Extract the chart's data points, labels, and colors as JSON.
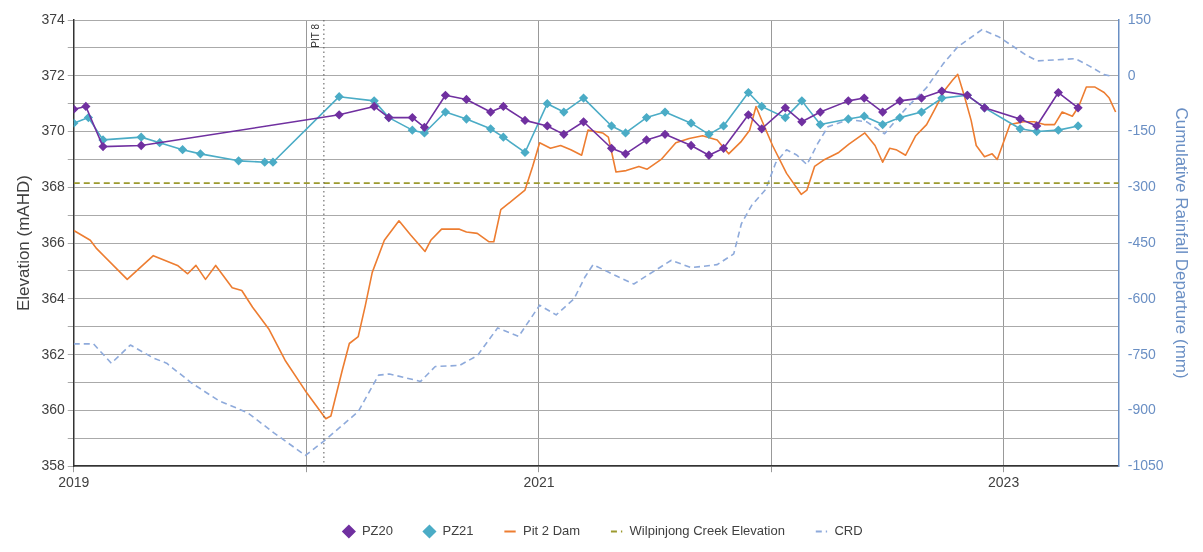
{
  "chart_data": {
    "type": "line",
    "ylabel": "Elevation (mAHD)",
    "y2label": "Cumulative Rainfall Departure (mm)",
    "xlim": [
      "2019-01-01",
      "2023-07-01"
    ],
    "xticks": [
      {
        "value": "2019-01-01",
        "label": "2019"
      },
      {
        "value": "2020-01-01",
        "label": null
      },
      {
        "value": "2021-01-01",
        "label": "2021"
      },
      {
        "value": "2022-01-01",
        "label": null
      },
      {
        "value": "2023-01-01",
        "label": "2023"
      }
    ],
    "ylim": [
      358,
      374
    ],
    "yticks": [
      358,
      {
        "value": 359,
        "label": null
      },
      360,
      {
        "value": 361,
        "label": null
      },
      362,
      {
        "value": 363,
        "label": null
      },
      364,
      {
        "value": 365,
        "label": null
      },
      366,
      {
        "value": 367,
        "label": null
      },
      368,
      {
        "value": 369,
        "label": null
      },
      370,
      {
        "value": 371,
        "label": null
      },
      372,
      {
        "value": 373,
        "label": null
      },
      374
    ],
    "y2lim": [
      -1050,
      150
    ],
    "y2ticks": [
      -1050,
      -900,
      -750,
      -600,
      -450,
      -300,
      -150,
      0,
      150
    ],
    "grid": true,
    "legend": "bottom",
    "ref_lines": [
      {
        "axis": "x",
        "value": "2020-01-29",
        "label": "PIT 8",
        "line_style": "dotted",
        "color": "#555555"
      }
    ],
    "series": [
      {
        "name": "PZ20",
        "color": "#7030a0",
        "marker": "diamond",
        "line_style": "solid",
        "x": [
          "2019-01-01",
          "2019-01-20",
          "2019-02-16",
          "2019-04-17",
          "2020-02-22",
          "2020-04-17",
          "2020-05-10",
          "2020-06-16",
          "2020-07-05",
          "2020-08-07",
          "2020-09-09",
          "2020-10-17",
          "2020-11-06",
          "2020-12-10",
          "2021-01-14",
          "2021-02-09",
          "2021-03-12",
          "2021-04-25",
          "2021-05-17",
          "2021-06-19",
          "2021-07-18",
          "2021-08-28",
          "2021-09-25",
          "2021-10-18",
          "2021-11-26",
          "2021-12-17",
          "2022-01-23",
          "2022-02-18",
          "2022-03-19",
          "2022-05-02",
          "2022-05-27",
          "2022-06-25",
          "2022-07-22",
          "2022-08-25",
          "2022-09-26",
          "2022-11-05",
          "2022-12-02",
          "2023-01-27",
          "2023-02-22",
          "2023-03-28",
          "2023-04-28"
        ],
        "values": [
          370.8,
          370.9,
          369.46,
          369.5,
          370.6,
          370.9,
          370.5,
          370.5,
          370.15,
          371.3,
          371.15,
          370.7,
          370.9,
          370.4,
          370.2,
          369.9,
          370.35,
          369.4,
          369.2,
          369.7,
          369.9,
          369.5,
          369.15,
          369.4,
          370.6,
          370.1,
          370.85,
          370.35,
          370.7,
          371.1,
          371.2,
          370.7,
          371.1,
          371.2,
          371.45,
          371.3,
          370.85,
          370.45,
          370.2,
          371.4,
          370.85
        ]
      },
      {
        "name": "PZ21",
        "color": "#4bacc6",
        "marker": "diamond",
        "line_style": "solid",
        "x": [
          "2019-01-01",
          "2019-01-24",
          "2019-02-16",
          "2019-04-17",
          "2019-05-16",
          "2019-06-21",
          "2019-07-19",
          "2019-09-17",
          "2019-10-28",
          "2019-11-10",
          "2020-02-22",
          "2020-04-17",
          "2020-05-10",
          "2020-06-16",
          "2020-07-05",
          "2020-08-07",
          "2020-09-09",
          "2020-10-17",
          "2020-11-06",
          "2020-12-10",
          "2021-01-14",
          "2021-02-09",
          "2021-03-12",
          "2021-04-25",
          "2021-05-17",
          "2021-06-19",
          "2021-07-18",
          "2021-08-28",
          "2021-09-25",
          "2021-10-18",
          "2021-11-26",
          "2021-12-17",
          "2022-01-23",
          "2022-02-18",
          "2022-03-19",
          "2022-05-02",
          "2022-05-27",
          "2022-06-25",
          "2022-07-22",
          "2022-08-25",
          "2022-09-26",
          "2022-11-05",
          "2022-12-02",
          "2023-01-27",
          "2023-02-22",
          "2023-03-28",
          "2023-04-28"
        ],
        "values": [
          370.3,
          370.5,
          369.7,
          369.8,
          369.6,
          369.35,
          369.2,
          368.95,
          368.9,
          368.9,
          371.25,
          371.1,
          370.5,
          370.05,
          369.95,
          370.7,
          370.45,
          370.1,
          369.8,
          369.25,
          371.0,
          370.7,
          371.2,
          370.2,
          369.95,
          370.5,
          370.7,
          370.3,
          369.9,
          370.2,
          371.4,
          370.9,
          370.5,
          371.1,
          370.25,
          370.45,
          370.55,
          370.25,
          370.5,
          370.7,
          371.2,
          371.3,
          370.85,
          370.1,
          370.0,
          370.05,
          370.2
        ]
      },
      {
        "name": "Pit 2 Dam",
        "color": "#ed7d31",
        "marker": "none",
        "line_style": "solid",
        "x": [
          "2019-01-01",
          "2019-01-27",
          "2019-02-06",
          "2019-03-26",
          "2019-05-06",
          "2019-06-13",
          "2019-06-29",
          "2019-07-12",
          "2019-07-27",
          "2019-08-12",
          "2019-09-07",
          "2019-09-22",
          "2019-10-09",
          "2019-11-04",
          "2019-11-29",
          "2019-12-31",
          "2020-02-01",
          "2020-02-09",
          "2020-02-27",
          "2020-03-09",
          "2020-03-23",
          "2020-04-03",
          "2020-04-14",
          "2020-05-03",
          "2020-05-26",
          "2020-06-13",
          "2020-07-06",
          "2020-07-15",
          "2020-08-01",
          "2020-08-29",
          "2020-09-09",
          "2020-09-26",
          "2020-10-14",
          "2020-10-22",
          "2020-11-02",
          "2020-11-24",
          "2020-12-10",
          "2020-12-22",
          "2021-01-02",
          "2021-01-19",
          "2021-02-04",
          "2021-02-20",
          "2021-03-09",
          "2021-03-19",
          "2021-04-11",
          "2021-04-20",
          "2021-05-02",
          "2021-05-18",
          "2021-06-07",
          "2021-06-20",
          "2021-07-12",
          "2021-08-04",
          "2021-08-25",
          "2021-09-15",
          "2021-10-08",
          "2021-10-26",
          "2021-11-15",
          "2021-11-28",
          "2021-12-08",
          "2021-12-18",
          "2022-01-03",
          "2022-01-25",
          "2022-02-17",
          "2022-02-26",
          "2022-03-10",
          "2022-03-26",
          "2022-04-17",
          "2022-05-03",
          "2022-05-28",
          "2022-06-13",
          "2022-06-25",
          "2022-07-06",
          "2022-07-16",
          "2022-07-31",
          "2022-08-16",
          "2022-09-02",
          "2022-09-15",
          "2022-10-01",
          "2022-10-13",
          "2022-10-21",
          "2022-10-31",
          "2022-11-11",
          "2022-11-19",
          "2022-12-02",
          "2022-12-14",
          "2022-12-22",
          "2022-12-30",
          "2023-01-11",
          "2023-02-01",
          "2023-02-18",
          "2023-03-06",
          "2023-03-22",
          "2023-04-03",
          "2023-04-19",
          "2023-04-29",
          "2023-05-11",
          "2023-05-24",
          "2023-06-08",
          "2023-06-16",
          "2023-06-26"
        ],
        "values": [
          366.45,
          366.1,
          365.8,
          364.7,
          365.55,
          365.2,
          364.9,
          365.2,
          364.7,
          365.2,
          364.4,
          364.3,
          363.7,
          362.9,
          361.8,
          360.7,
          359.7,
          359.8,
          361.45,
          362.4,
          362.65,
          363.75,
          364.95,
          366.1,
          366.8,
          366.3,
          365.7,
          366.1,
          366.5,
          366.5,
          366.4,
          366.35,
          366.05,
          366.05,
          367.2,
          367.6,
          367.9,
          368.75,
          369.6,
          369.4,
          369.5,
          369.35,
          369.15,
          370.05,
          369.95,
          369.8,
          368.55,
          368.6,
          368.75,
          368.65,
          369.0,
          369.6,
          369.75,
          369.85,
          369.7,
          369.2,
          369.65,
          370.05,
          370.9,
          370.35,
          369.5,
          368.5,
          367.75,
          367.9,
          368.75,
          369.0,
          369.25,
          369.55,
          369.95,
          369.5,
          368.9,
          369.4,
          369.35,
          369.15,
          369.85,
          370.25,
          370.8,
          371.5,
          371.85,
          372.05,
          371.3,
          370.4,
          369.5,
          369.1,
          369.2,
          369.0,
          369.5,
          370.25,
          370.35,
          370.35,
          370.25,
          370.25,
          370.7,
          370.55,
          370.9,
          371.6,
          371.6,
          371.4,
          371.2,
          370.7
        ]
      },
      {
        "name": "Wilpinjong Creek Elevation",
        "color": "#9c9a2e",
        "marker": "none",
        "line_style": "dashed",
        "x": [
          "2019-01-01",
          "2023-07-01"
        ],
        "values": [
          368.15,
          368.15
        ]
      },
      {
        "name": "CRD",
        "color": "#8eaadb",
        "marker": "none",
        "line_style": "dashed",
        "axis": "y2",
        "x": [
          "2019-01-01",
          "2019-02-01",
          "2019-03-01",
          "2019-03-31",
          "2019-05-06",
          "2019-05-27",
          "2019-07-04",
          "2019-08-17",
          "2019-10-01",
          "2019-11-12",
          "2019-12-31",
          "2020-01-28",
          "2020-03-23",
          "2020-04-24",
          "2020-05-11",
          "2020-06-29",
          "2020-07-22",
          "2020-08-29",
          "2020-09-26",
          "2020-10-28",
          "2020-11-30",
          "2021-01-02",
          "2021-01-28",
          "2021-02-25",
          "2021-03-14",
          "2021-03-27",
          "2021-05-07",
          "2021-05-30",
          "2021-06-20",
          "2021-07-28",
          "2021-08-28",
          "2021-10-08",
          "2021-11-03",
          "2021-11-15",
          "2021-12-01",
          "2021-12-23",
          "2022-01-08",
          "2022-01-25",
          "2022-02-10",
          "2022-02-26",
          "2022-03-15",
          "2022-03-31",
          "2022-05-03",
          "2022-05-31",
          "2022-06-28",
          "2022-07-31",
          "2022-09-02",
          "2022-09-28",
          "2022-10-21",
          "2022-11-28",
          "2022-12-25",
          "2023-02-06",
          "2023-02-23",
          "2023-04-24",
          "2023-05-16",
          "2023-06-08",
          "2023-06-17"
        ],
        "values": [
          -721,
          -721,
          -773,
          -724,
          -759,
          -773,
          -825,
          -874,
          -906,
          -961,
          -1021,
          -984,
          -903,
          -805,
          -802,
          -822,
          -782,
          -779,
          -753,
          -678,
          -701,
          -617,
          -643,
          -600,
          -542,
          -508,
          -542,
          -560,
          -537,
          -496,
          -516,
          -508,
          -479,
          -398,
          -349,
          -306,
          -234,
          -199,
          -213,
          -239,
          -182,
          -137,
          -118,
          -124,
          -156,
          -89,
          -32,
          32,
          78,
          124,
          104,
          55,
          40,
          46,
          26,
          3,
          0
        ]
      }
    ]
  }
}
